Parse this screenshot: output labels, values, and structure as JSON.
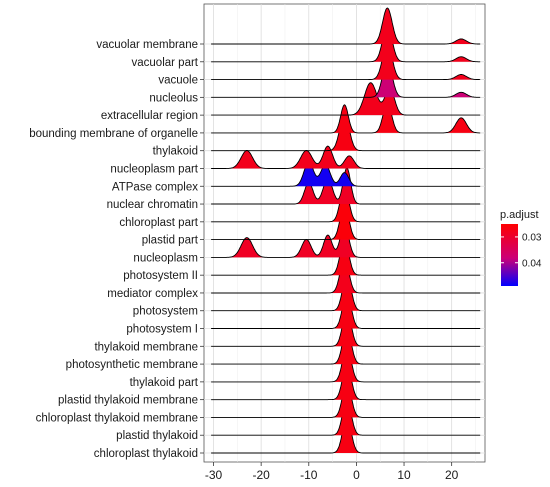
{
  "chart_data": {
    "type": "ridgeline",
    "xlim": [
      -32,
      27
    ],
    "xticks": [
      -30,
      -20,
      -10,
      0,
      10,
      20
    ],
    "xtick_labels": [
      "-30",
      "-20",
      "-10",
      "0",
      "10",
      "20"
    ],
    "grid": true,
    "legend": {
      "title": "p.adjust",
      "position": "right",
      "ticks": [
        0.03,
        0.04
      ],
      "tick_labels": [
        "0.03",
        "0.04"
      ],
      "range": [
        0.025,
        0.049
      ],
      "colors": {
        "low": "#ff0000",
        "high": "#0000ff"
      }
    },
    "categories": [
      {
        "label": "vacuolar membrane",
        "p_adjust": 0.028,
        "peaks": [
          [
            6.5,
            1.0,
            1.0
          ],
          [
            22,
            0.14,
            1.1
          ]
        ]
      },
      {
        "label": "vacuolar part",
        "p_adjust": 0.028,
        "peaks": [
          [
            6.5,
            1.0,
            1.0
          ],
          [
            22,
            0.14,
            1.1
          ]
        ]
      },
      {
        "label": "vacuole",
        "p_adjust": 0.028,
        "peaks": [
          [
            6.5,
            1.0,
            1.0
          ],
          [
            22,
            0.14,
            1.1
          ]
        ]
      },
      {
        "label": "nucleolus",
        "p_adjust": 0.038,
        "peaks": [
          [
            6.5,
            1.0,
            1.0
          ],
          [
            22,
            0.14,
            1.1
          ]
        ]
      },
      {
        "label": "extracellular region",
        "p_adjust": 0.028,
        "peaks": [
          [
            3,
            0.9,
            1.3
          ],
          [
            7,
            0.75,
            1.0
          ]
        ]
      },
      {
        "label": "bounding membrane of organelle",
        "p_adjust": 0.027,
        "peaks": [
          [
            -2.5,
            0.78,
            0.8
          ],
          [
            6.5,
            0.84,
            0.9
          ],
          [
            22,
            0.42,
            1.1
          ]
        ]
      },
      {
        "label": "thylakoid",
        "p_adjust": 0.027,
        "peaks": [
          [
            -2.5,
            1.0,
            1.0
          ]
        ]
      },
      {
        "label": "nucleoplasm part",
        "p_adjust": 0.028,
        "peaks": [
          [
            -23,
            0.5,
            1.2
          ],
          [
            -10.5,
            0.5,
            1.2
          ],
          [
            -6,
            0.62,
            1.0
          ],
          [
            -1.5,
            0.35,
            1.0
          ]
        ]
      },
      {
        "label": "ATPase complex",
        "p_adjust": 0.048,
        "peaks": [
          [
            -10,
            0.68,
            1.0
          ],
          [
            -6.5,
            0.6,
            1.0
          ],
          [
            -2.5,
            0.38,
            0.9
          ]
        ]
      },
      {
        "label": "nuclear chromatin",
        "p_adjust": 0.029,
        "peaks": [
          [
            -10,
            0.6,
            0.9
          ],
          [
            -6,
            0.7,
            1.0
          ],
          [
            -2,
            1.0,
            0.8
          ]
        ]
      },
      {
        "label": "chloroplast part",
        "p_adjust": 0.026,
        "peaks": [
          [
            -2.5,
            1.0,
            0.9
          ]
        ]
      },
      {
        "label": "plastid part",
        "p_adjust": 0.026,
        "peaks": [
          [
            -2.5,
            1.0,
            0.9
          ]
        ]
      },
      {
        "label": "nucleoplasm",
        "p_adjust": 0.029,
        "peaks": [
          [
            -23,
            0.55,
            1.2
          ],
          [
            -10.5,
            0.5,
            1.0
          ],
          [
            -6,
            0.62,
            0.9
          ],
          [
            -2.5,
            0.9,
            0.9
          ]
        ]
      },
      {
        "label": "photosystem II",
        "p_adjust": 0.027,
        "peaks": [
          [
            -2.5,
            1.0,
            0.9
          ]
        ]
      },
      {
        "label": "mediator complex",
        "p_adjust": 0.028,
        "peaks": [
          [
            -2.5,
            1.0,
            0.9
          ]
        ]
      },
      {
        "label": "photosystem",
        "p_adjust": 0.027,
        "peaks": [
          [
            -2.0,
            1.0,
            0.9
          ]
        ]
      },
      {
        "label": "photosystem I",
        "p_adjust": 0.027,
        "peaks": [
          [
            -2.0,
            1.0,
            0.9
          ]
        ]
      },
      {
        "label": "thylakoid membrane",
        "p_adjust": 0.027,
        "peaks": [
          [
            -2.0,
            1.0,
            0.9
          ]
        ]
      },
      {
        "label": "photosynthetic membrane",
        "p_adjust": 0.027,
        "peaks": [
          [
            -2.0,
            1.0,
            0.9
          ]
        ]
      },
      {
        "label": "thylakoid part",
        "p_adjust": 0.027,
        "peaks": [
          [
            -2.0,
            1.0,
            0.9
          ]
        ]
      },
      {
        "label": "plastid thylakoid membrane",
        "p_adjust": 0.027,
        "peaks": [
          [
            -2.0,
            1.0,
            0.9
          ]
        ]
      },
      {
        "label": "chloroplast thylakoid membrane",
        "p_adjust": 0.027,
        "peaks": [
          [
            -2.0,
            1.0,
            0.9
          ]
        ]
      },
      {
        "label": "plastid thylakoid",
        "p_adjust": 0.027,
        "peaks": [
          [
            -2.0,
            1.0,
            0.9
          ]
        ]
      },
      {
        "label": "chloroplast thylakoid",
        "p_adjust": 0.027,
        "peaks": [
          [
            -2.0,
            1.0,
            0.9
          ]
        ]
      }
    ]
  }
}
